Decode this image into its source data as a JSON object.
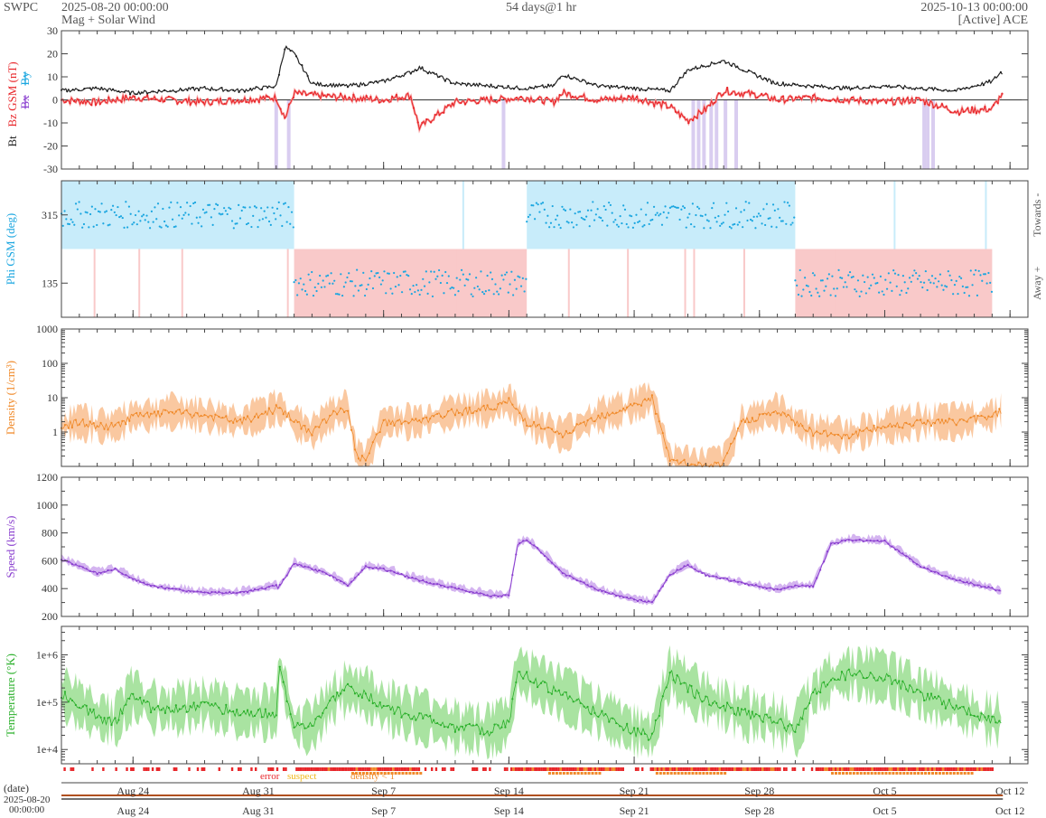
{
  "header": {
    "app": "SWPC",
    "start": "2025-08-20 00:00:00",
    "product": "Mag + Solar Wind",
    "span": "54 days@1 hr",
    "end": "2025-10-13 00:00:00",
    "source": "[Active] ACE"
  },
  "colors": {
    "bt": "#222222",
    "bz": "#e8262a",
    "bx": "#8a3fcf",
    "by": "#1aa6e0",
    "phi_towards": "#c8ecfa",
    "phi_away": "#f9c9c9",
    "phi_points": "#1aa6e0",
    "density": "#f08a2a",
    "density_band": "#fac8a0",
    "speed": "#8a3fcf",
    "speed_band": "#d4b4f0",
    "temperature": "#2bb02b",
    "temperature_band": "#a9e3a1",
    "bz_negative_fill": "#d9cdf0",
    "error": "#e8262a",
    "suspect": "#f0b81a",
    "density_flag": "#f08a2a"
  },
  "chart_data": [
    {
      "type": "line",
      "panel": "mag",
      "ylabel_parts": [
        "Bt",
        "Bz GSM (nT)",
        "Bx",
        "By"
      ],
      "ylim": [
        -30,
        30
      ],
      "yticks": [
        "30",
        "20",
        "10",
        "0",
        "-10",
        "-20",
        "-30"
      ],
      "xlim_days": [
        0,
        54
      ],
      "series": [
        {
          "name": "Bt",
          "x_days": [
            0,
            2,
            4,
            6,
            8,
            10,
            12,
            12.5,
            13,
            14,
            16,
            18,
            19.5,
            20,
            22,
            24,
            26,
            27.5,
            28,
            30,
            32,
            34,
            35,
            37,
            39,
            40,
            42,
            44,
            46,
            48,
            50,
            52,
            52.5,
            53,
            54
          ],
          "values": [
            4,
            5,
            3,
            4,
            5,
            4,
            6,
            23,
            20,
            7,
            6,
            8,
            12,
            14,
            7,
            6,
            5,
            6,
            11,
            6,
            5,
            4,
            13,
            17,
            10,
            7,
            6,
            5,
            6,
            5,
            4,
            8,
            12,
            9,
            10
          ]
        },
        {
          "name": "Bz",
          "x_days": [
            0,
            2,
            4,
            6,
            8,
            10,
            12,
            12.5,
            13,
            14,
            16,
            18,
            19.5,
            20,
            22,
            24,
            26,
            27.5,
            28,
            30,
            32,
            34,
            35,
            36,
            37,
            39,
            40,
            42,
            44,
            46,
            48,
            50,
            52,
            52.5,
            53,
            54
          ],
          "values": [
            0,
            -1,
            1,
            0,
            -1,
            0,
            1,
            -8,
            3,
            2,
            1,
            0,
            2,
            -12,
            -1,
            0,
            1,
            -1,
            3,
            0,
            1,
            -3,
            -9,
            -4,
            4,
            2,
            0,
            1,
            0,
            -1,
            0,
            -5,
            -4,
            2,
            -3,
            -2
          ]
        }
      ]
    },
    {
      "type": "scatter",
      "panel": "phi",
      "ylabel": "Phi GSM (deg)",
      "yticks": [
        "315",
        "135"
      ],
      "ylim": [
        45,
        405
      ],
      "right_labels": [
        "Towards -",
        "Away +"
      ],
      "sectors": [
        {
          "sector": "towards",
          "from_day": 0,
          "to_day": 13
        },
        {
          "sector": "away",
          "from_day": 13,
          "to_day": 26
        },
        {
          "sector": "towards",
          "from_day": 26,
          "to_day": 41
        },
        {
          "sector": "away",
          "from_day": 41,
          "to_day": 52
        }
      ]
    },
    {
      "type": "line",
      "panel": "density",
      "ylabel": "Density (1/cm³)",
      "scale": "log",
      "yticks": [
        "1000",
        "100",
        "10",
        "1"
      ],
      "ylim": [
        0.1,
        1000
      ],
      "x_days": [
        0,
        1,
        2,
        3,
        4,
        5,
        6,
        8,
        10,
        11,
        12,
        12.5,
        13,
        14,
        15,
        16,
        16.5,
        17,
        18,
        20,
        22,
        24,
        25,
        26,
        28,
        30,
        31,
        32,
        33,
        34,
        35,
        36,
        37,
        38,
        40,
        42,
        44,
        46,
        48,
        50,
        52,
        53,
        54
      ],
      "values": [
        1.5,
        2,
        1.5,
        1.5,
        3,
        3,
        4,
        3,
        2,
        3,
        5,
        4,
        2,
        1,
        3,
        5,
        0.2,
        0.15,
        2,
        2,
        4,
        5,
        8,
        2,
        0.8,
        3,
        4,
        6,
        10,
        0.15,
        0.12,
        0.1,
        0.12,
        2,
        4,
        1,
        0.8,
        1.5,
        2,
        2,
        3,
        6,
        1.5
      ]
    },
    {
      "type": "line",
      "panel": "speed",
      "ylabel": "Speed (km/s)",
      "yticks": [
        "1200",
        "1000",
        "800",
        "600",
        "400",
        "200"
      ],
      "ylim": [
        200,
        1200
      ],
      "x_days": [
        0,
        1,
        2,
        3,
        4,
        5,
        6,
        8,
        10,
        12,
        12.1,
        13,
        15,
        16,
        17,
        18,
        20,
        22,
        24,
        25,
        25.5,
        26,
        27,
        28,
        30,
        32,
        33,
        34,
        35,
        36,
        38,
        40,
        41,
        42,
        43,
        44,
        46,
        48,
        50,
        52,
        53,
        54
      ],
      "values": [
        610,
        560,
        510,
        540,
        470,
        420,
        400,
        370,
        370,
        420,
        400,
        580,
        500,
        420,
        560,
        540,
        460,
        400,
        350,
        350,
        720,
        750,
        640,
        510,
        390,
        320,
        300,
        500,
        570,
        500,
        440,
        390,
        420,
        420,
        720,
        750,
        740,
        560,
        460,
        400,
        350,
        400
      ]
    },
    {
      "type": "line",
      "panel": "temperature",
      "ylabel": "Temperature (°K)",
      "scale": "log",
      "yticks": [
        "1e+6",
        "1e+5",
        "1e+4"
      ],
      "ylim": [
        5000,
        4000000
      ],
      "x_days": [
        0,
        1,
        2,
        3,
        4,
        5,
        6,
        8,
        10,
        12,
        12.2,
        13,
        14,
        15,
        16,
        17,
        18,
        20,
        22,
        24,
        25,
        25.5,
        26,
        28,
        30,
        32,
        33,
        34,
        35,
        36,
        38,
        40,
        41,
        42,
        43,
        44,
        46,
        48,
        50,
        52,
        53,
        54
      ],
      "values": [
        150000,
        90000,
        50000,
        40000,
        150000,
        80000,
        70000,
        90000,
        60000,
        60000,
        600000,
        30000,
        30000,
        100000,
        200000,
        150000,
        80000,
        50000,
        30000,
        25000,
        40000,
        500000,
        350000,
        150000,
        60000,
        25000,
        20000,
        400000,
        200000,
        120000,
        60000,
        40000,
        25000,
        150000,
        300000,
        400000,
        350000,
        150000,
        80000,
        40000,
        50000,
        100000
      ]
    }
  ],
  "flags_legend": {
    "error": "error",
    "suspect": "suspect",
    "density": "density < 1"
  },
  "x_axis": {
    "date_label": "(date)",
    "start_date": "2025-08-20",
    "start_time": "00:00:00",
    "ticks": [
      {
        "label": "Aug 24",
        "day": 4
      },
      {
        "label": "Aug 31",
        "day": 11
      },
      {
        "label": "Sep 7",
        "day": 18
      },
      {
        "label": "Sep 14",
        "day": 25
      },
      {
        "label": "Sep 21",
        "day": 32
      },
      {
        "label": "Sep 28",
        "day": 39
      },
      {
        "label": "Oct 5",
        "day": 46
      },
      {
        "label": "Oct 12",
        "day": 53
      }
    ]
  }
}
